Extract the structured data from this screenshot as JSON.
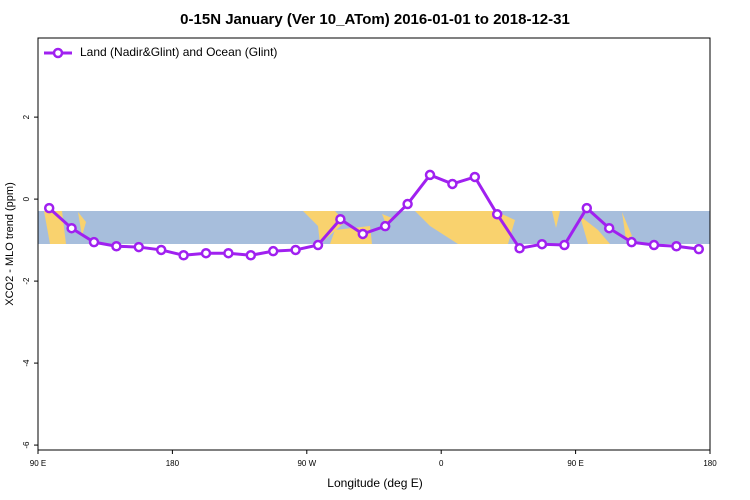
{
  "chart_data": {
    "type": "line",
    "title": "0-15N January (Ver 10_ATom)   2016-01-01 to 2018-12-31",
    "xlabel": "Longitude (deg E)",
    "ylabel": "XCO2 - MLO trend (ppm)",
    "x": [
      97.5,
      112.5,
      127.5,
      142.5,
      157.5,
      172.5,
      187.5,
      202.5,
      217.5,
      232.5,
      247.5,
      262.5,
      277.5,
      292.5,
      307.5,
      322.5,
      337.5,
      352.5,
      367.5,
      382.5,
      397.5,
      412.5,
      427.5,
      442.5,
      457.5,
      472.5,
      487.5,
      502.5,
      517.5,
      532.5
    ],
    "series": [
      {
        "name": "Land (Nadir&Glint) and Ocean (Glint)",
        "color": "#a020f0",
        "values": [
          -0.22,
          -0.71,
          -1.05,
          -1.15,
          -1.17,
          -1.24,
          -1.37,
          -1.32,
          -1.32,
          -1.37,
          -1.27,
          -1.24,
          -1.12,
          -0.49,
          -0.85,
          -0.66,
          -0.12,
          0.59,
          0.37,
          0.54,
          -0.37,
          -1.2,
          -1.1,
          -1.12,
          -0.22,
          -0.71,
          -1.05,
          -1.12,
          -1.15,
          -1.22
        ]
      }
    ],
    "xlim": [
      90,
      540
    ],
    "xticks": [
      {
        "value": 90,
        "label": "90 E"
      },
      180,
      {
        "value": 270,
        "label": "90 W"
      },
      {
        "value": 360,
        "label": "0"
      },
      {
        "value": 450,
        "label": "90 E"
      },
      {
        "value": 540,
        "label": "180"
      }
    ],
    "ylim": [
      -6.12,
      3.93
    ],
    "yticks": [
      -6,
      -4,
      -2,
      0,
      2
    ],
    "legend": "top-left"
  }
}
